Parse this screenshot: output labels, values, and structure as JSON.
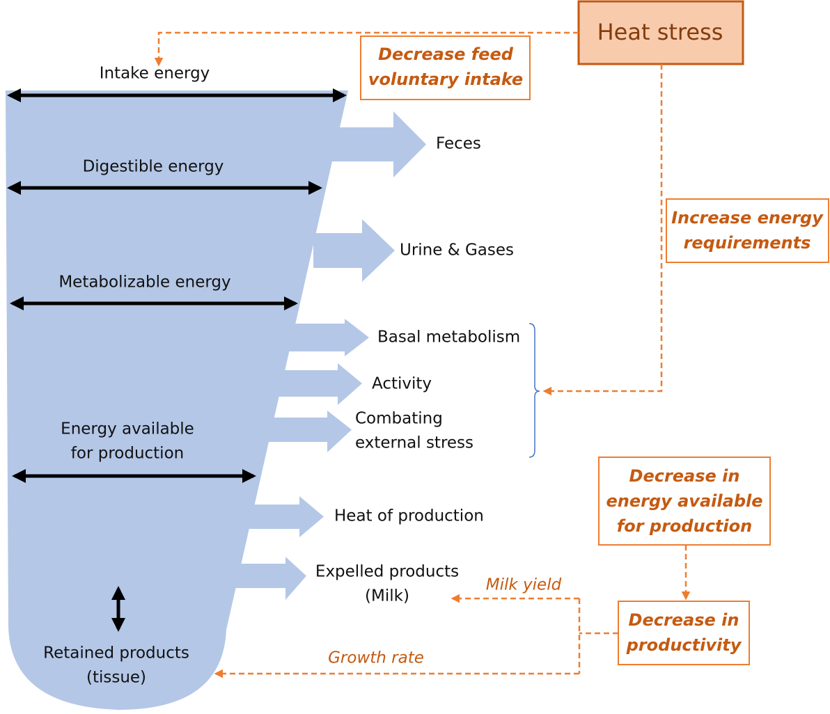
{
  "heat_stress": "Heat stress",
  "energy_levels": [
    [
      "Intake energy"
    ],
    [
      "Digestible energy"
    ],
    [
      "Metabolizable energy"
    ],
    [
      "Energy available",
      "for production"
    ]
  ],
  "outputs": [
    [
      "Feces"
    ],
    [
      "Urine & Gases"
    ],
    [
      "Basal metabolism"
    ],
    [
      "Activity"
    ],
    [
      "Combating",
      "external stress"
    ],
    [
      "Heat of production"
    ],
    [
      "Expelled products",
      "(Milk)"
    ]
  ],
  "retained": [
    "Retained products",
    "(tissue)"
  ],
  "effects": {
    "intake": [
      "Decrease feed",
      "voluntary intake"
    ],
    "requirements": [
      "Increase energy",
      "requirements"
    ],
    "available": [
      "Decrease in",
      "energy available",
      "for production"
    ],
    "productivity": [
      "Decrease in",
      "productivity"
    ]
  },
  "paths": {
    "milk": "Milk yield",
    "growth": "Growth rate"
  }
}
